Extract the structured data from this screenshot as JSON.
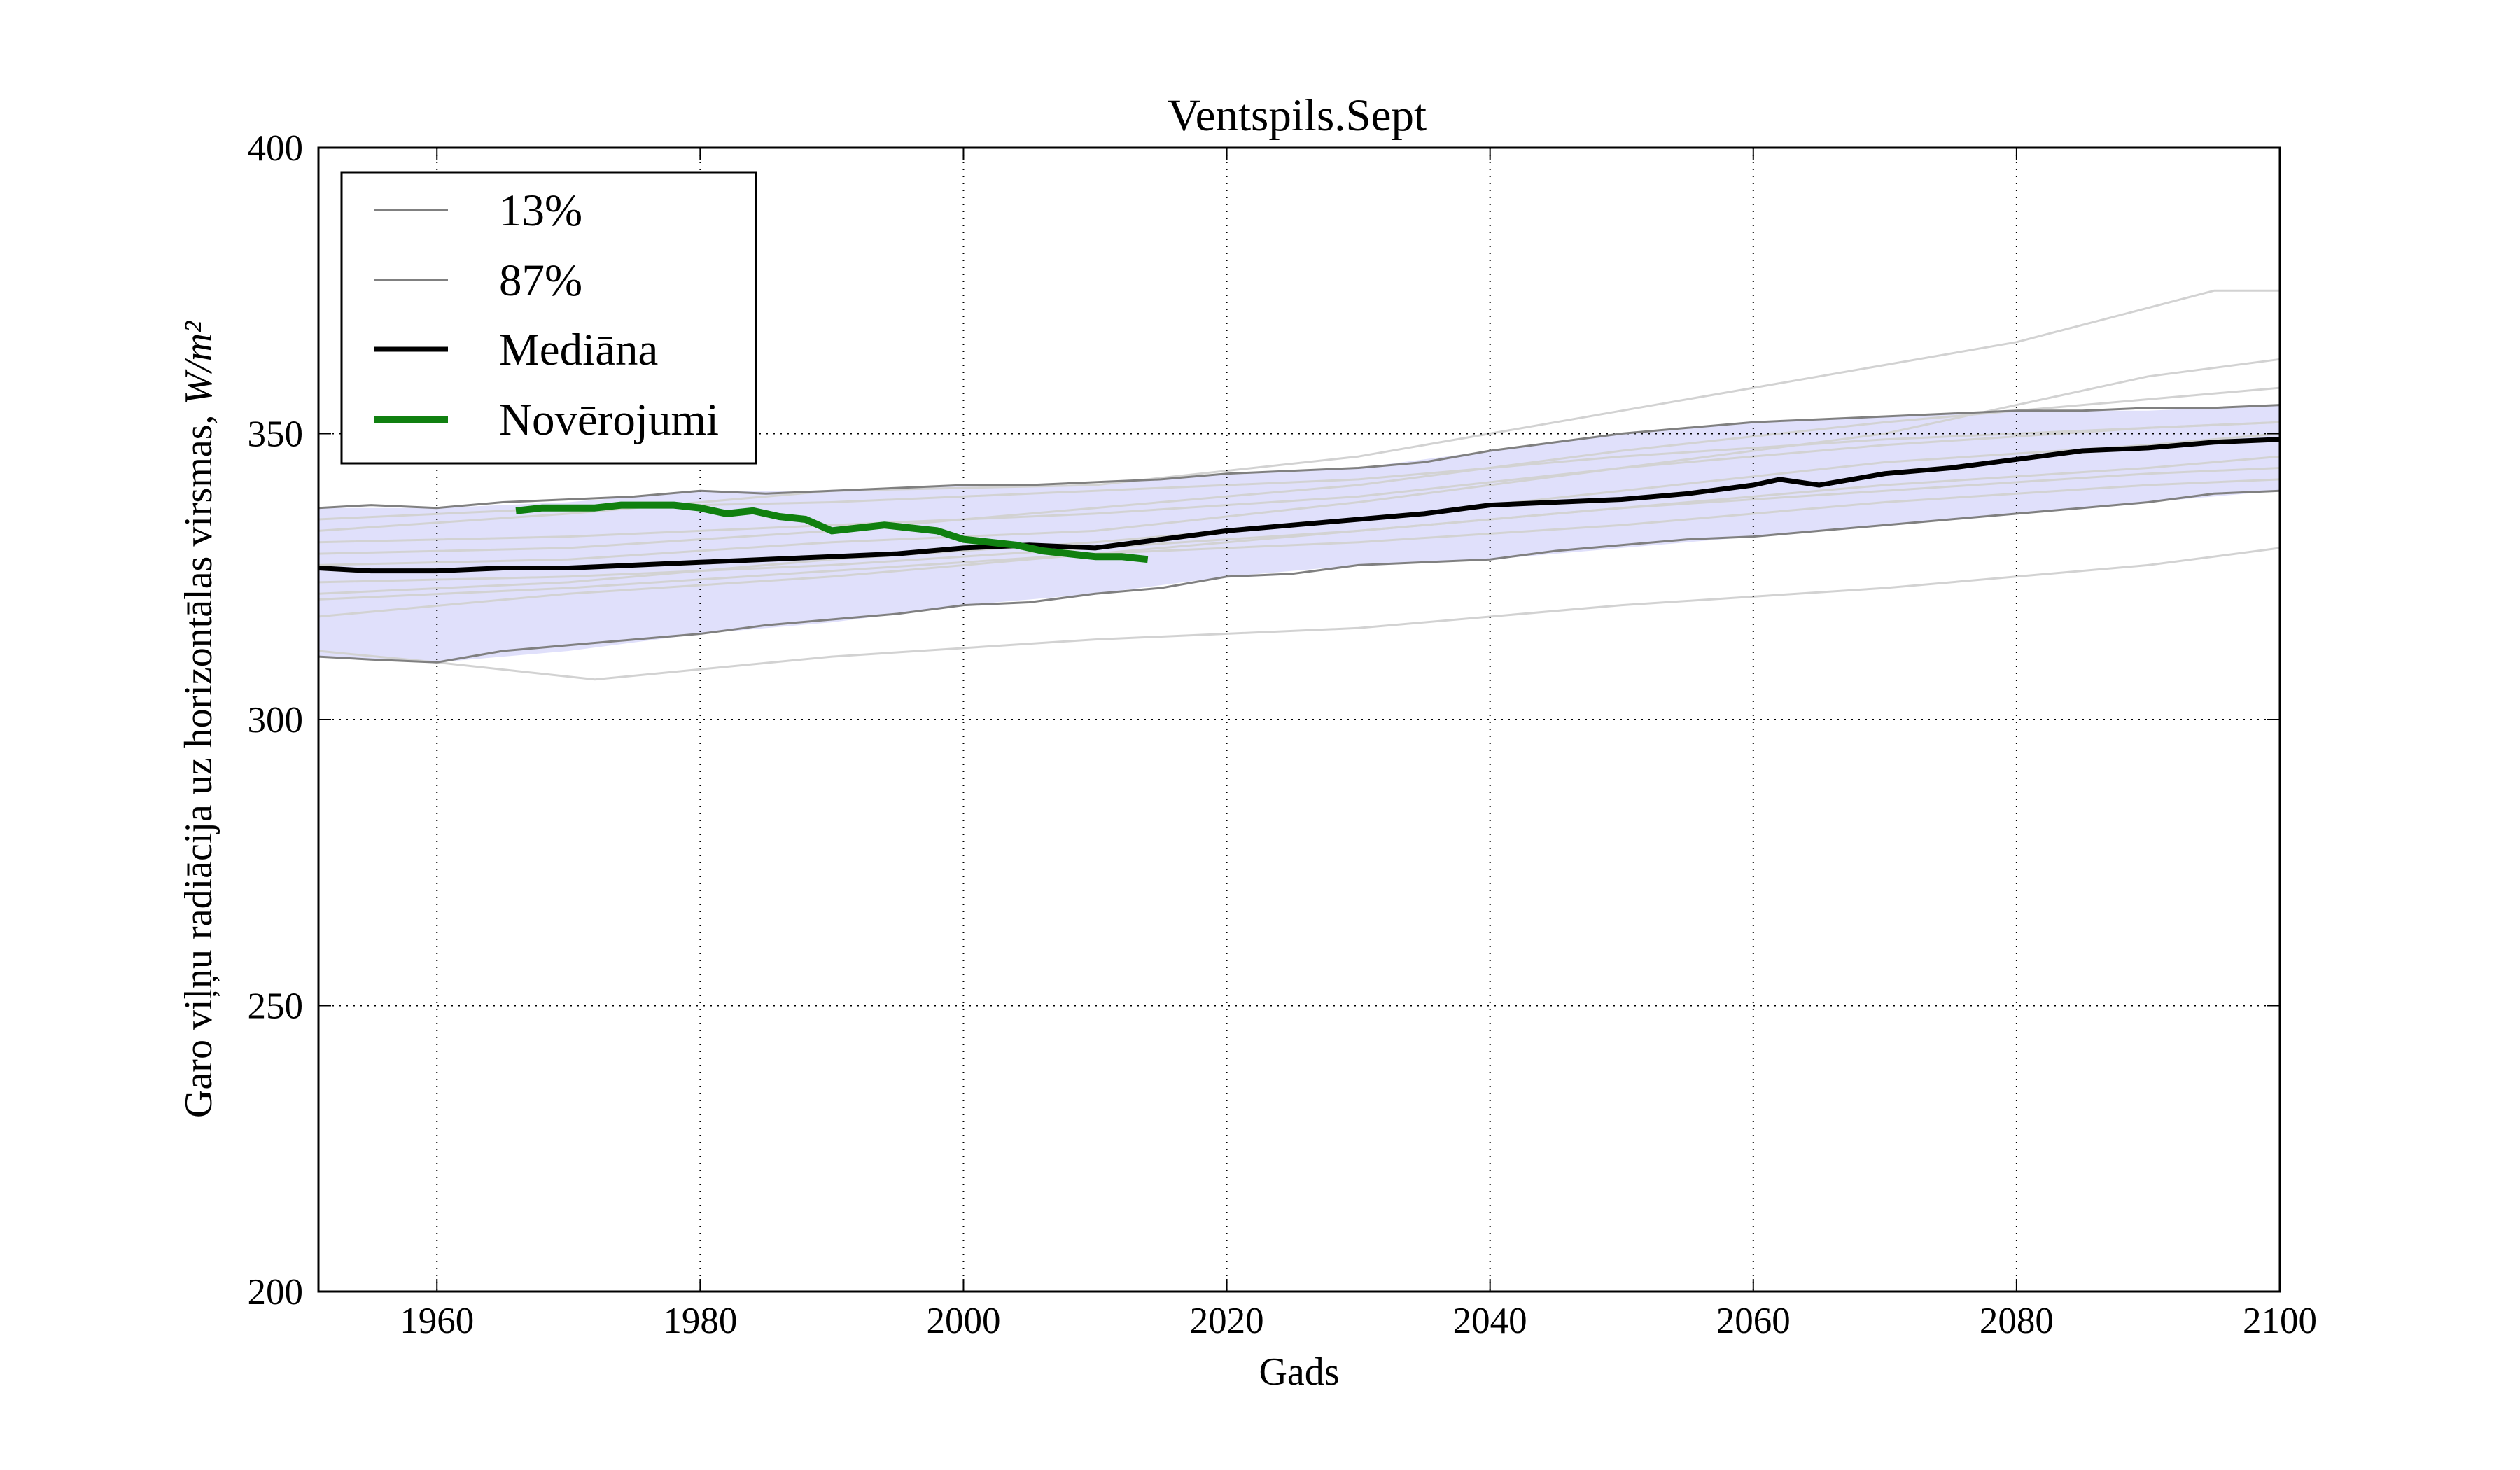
{
  "chart_data": {
    "type": "line",
    "title": "Ventspils.Sept",
    "xlabel": "Gads",
    "ylabel": "Garo viļņu radiācija uz horizontālas virsmas, ",
    "ylabel_unit": "W/m²",
    "xlim": [
      1951,
      2100
    ],
    "ylim": [
      200,
      400
    ],
    "x_ticks": [
      1960,
      1980,
      2000,
      2020,
      2040,
      2060,
      2080,
      2100
    ],
    "y_ticks": [
      200,
      250,
      300,
      350,
      400
    ],
    "grid": true,
    "legend_position": "top-left",
    "legend": [
      "13%",
      "87%",
      "Mediāna",
      "Novērojumi"
    ],
    "colors": {
      "band_fill": "#e0e0fb",
      "percentile": "#808080",
      "ensemble": "#d2d2d2",
      "median": "#000000",
      "observations": "#108010"
    },
    "band": {
      "x": [
        1951,
        1960,
        1970,
        1980,
        1990,
        2000,
        2010,
        2020,
        2030,
        2040,
        2050,
        2060,
        2070,
        2080,
        2090,
        2100
      ],
      "lower": [
        311,
        310,
        312,
        315,
        317,
        320,
        322,
        325,
        327,
        328,
        330,
        332,
        334,
        336,
        338,
        340
      ],
      "upper": [
        337,
        337,
        338,
        340,
        340,
        341,
        341,
        343,
        344,
        347,
        350,
        352,
        353,
        354,
        354,
        355
      ]
    },
    "series": [
      {
        "name": "13%",
        "x": [
          1951,
          1955,
          1960,
          1965,
          1970,
          1975,
          1980,
          1985,
          1990,
          1995,
          2000,
          2005,
          2010,
          2015,
          2020,
          2025,
          2030,
          2035,
          2040,
          2045,
          2050,
          2055,
          2060,
          2065,
          2070,
          2075,
          2080,
          2085,
          2090,
          2095,
          2100
        ],
        "values": [
          311,
          310.5,
          310,
          312,
          313,
          314,
          315,
          316.5,
          317.5,
          318.5,
          320,
          320.5,
          322,
          323,
          325,
          325.5,
          327,
          327.5,
          328,
          329.5,
          330.5,
          331.5,
          332,
          333,
          334,
          335,
          336,
          337,
          338,
          339.5,
          340
        ]
      },
      {
        "name": "87%",
        "x": [
          1951,
          1955,
          1960,
          1965,
          1970,
          1975,
          1980,
          1985,
          1990,
          1995,
          2000,
          2005,
          2010,
          2015,
          2020,
          2025,
          2030,
          2035,
          2040,
          2045,
          2050,
          2055,
          2060,
          2065,
          2070,
          2075,
          2080,
          2085,
          2090,
          2095,
          2100
        ],
        "values": [
          337,
          337.5,
          337,
          338,
          338.5,
          339,
          340,
          339.5,
          340,
          340.5,
          341,
          341,
          341.5,
          342,
          343,
          343.5,
          344,
          345,
          347,
          348.5,
          350,
          351,
          352,
          352.5,
          353,
          353.5,
          354,
          354,
          354.5,
          354.5,
          355
        ]
      },
      {
        "name": "Mediāna",
        "x": [
          1951,
          1955,
          1960,
          1965,
          1970,
          1975,
          1980,
          1985,
          1990,
          1995,
          2000,
          2005,
          2010,
          2015,
          2020,
          2025,
          2030,
          2035,
          2040,
          2045,
          2050,
          2055,
          2060,
          2062,
          2065,
          2070,
          2075,
          2080,
          2085,
          2090,
          2095,
          2100
        ],
        "values": [
          326.5,
          326,
          326,
          326.5,
          326.5,
          327,
          327.5,
          328,
          328.5,
          329,
          330,
          330.5,
          330,
          331.5,
          333,
          334,
          335,
          336,
          337.5,
          338,
          338.5,
          339.5,
          341,
          342,
          341,
          343,
          344,
          345.5,
          347,
          347.5,
          348.5,
          349
        ]
      },
      {
        "name": "Novērojumi",
        "x": [
          1966,
          1968,
          1970,
          1972,
          1974,
          1976,
          1978,
          1980,
          1982,
          1984,
          1986,
          1988,
          1990,
          1992,
          1994,
          1996,
          1998,
          2000,
          2002,
          2004,
          2006,
          2008,
          2010,
          2012,
          2014
        ],
        "values": [
          336.5,
          337,
          337,
          337,
          337.5,
          337.5,
          337.5,
          337,
          336,
          336.5,
          335.5,
          335,
          333,
          333.5,
          334,
          333.5,
          333,
          331.5,
          331,
          330.5,
          329.5,
          329,
          328.5,
          328.5,
          328
        ]
      }
    ],
    "ensemble": [
      {
        "x": [
          1951,
          1970,
          1990,
          2010,
          2030,
          2050,
          2070,
          2090,
          2100
        ],
        "values": [
          331,
          332,
          334,
          336,
          339,
          344,
          350,
          360,
          363
        ]
      },
      {
        "x": [
          1951,
          1970,
          1990,
          2010,
          2030,
          2050,
          2070,
          2090,
          2100
        ],
        "values": [
          318,
          322,
          325,
          329,
          333,
          337,
          341,
          344,
          346
        ]
      },
      {
        "x": [
          1951,
          1970,
          1990,
          2010,
          2030,
          2050,
          2070,
          2090,
          2100
        ],
        "values": [
          324,
          325,
          327,
          330,
          333,
          337,
          340,
          343,
          344
        ]
      },
      {
        "x": [
          1951,
          1970,
          1990,
          2010,
          2030,
          2050,
          2070,
          2090,
          2100
        ],
        "values": [
          321,
          323,
          326,
          329,
          331,
          334,
          338,
          341,
          342
        ]
      },
      {
        "x": [
          1951,
          1970,
          1990,
          2010,
          2030,
          2050,
          2070,
          2090,
          2100
        ],
        "values": [
          335,
          337,
          338,
          340,
          342,
          346,
          349,
          351,
          352
        ]
      },
      {
        "x": [
          1951,
          1970,
          1990,
          2010,
          2030,
          2050,
          2070,
          2090,
          2100
        ],
        "values": [
          327,
          328,
          331,
          333,
          338,
          344,
          348,
          351,
          352
        ]
      },
      {
        "x": [
          1951,
          1960,
          1972,
          1990,
          2010,
          2030,
          2050,
          2070,
          2090,
          2100
        ],
        "values": [
          312,
          310,
          307,
          311,
          314,
          316,
          320,
          323,
          327,
          330
        ]
      },
      {
        "x": [
          1951,
          1970,
          1990,
          2010,
          2030,
          2050,
          2060,
          2080,
          2095,
          2100
        ],
        "values": [
          333,
          336,
          340,
          341,
          346,
          354,
          358,
          366,
          375,
          375
        ]
      },
      {
        "x": [
          1951,
          1970,
          1990,
          2010,
          2030,
          2050,
          2070,
          2090,
          2100
        ],
        "values": [
          329,
          330,
          333,
          337,
          341,
          347,
          352,
          356,
          358
        ]
      },
      {
        "x": [
          1951,
          1970,
          1990,
          2010,
          2030,
          2050,
          2070,
          2090,
          2100
        ],
        "values": [
          322,
          324,
          328,
          331,
          335,
          340,
          345,
          348,
          350
        ]
      }
    ]
  }
}
